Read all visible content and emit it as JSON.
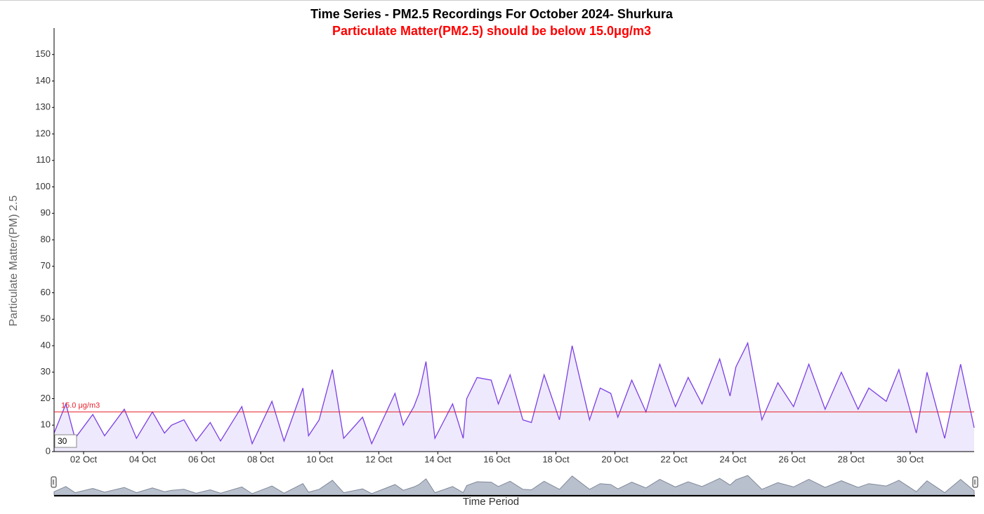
{
  "chart_data": {
    "type": "area",
    "title": "Time Series - PM2.5 Recordings For October 2024- Shurkura",
    "subtitle": "Particulate Matter(PM2.5) should be below 15.0μg/m3",
    "y_label": "Particulate Matter(PM) 2.5",
    "x_label": "Time Period",
    "zoom_label": "30",
    "threshold": {
      "value": 15,
      "label": "15.0 μg/m3",
      "color": "#e8202a"
    },
    "x": [
      1.0,
      1.4,
      1.71,
      2.31,
      2.71,
      3.38,
      3.79,
      4.33,
      4.74,
      4.98,
      5.4,
      5.81,
      6.29,
      6.64,
      7.36,
      7.71,
      8.38,
      8.79,
      9.43,
      9.62,
      9.98,
      10.43,
      10.81,
      11.45,
      11.76,
      12.55,
      12.83,
      13.19,
      13.36,
      13.6,
      13.9,
      14.5,
      14.86,
      14.98,
      15.33,
      15.81,
      16.05,
      16.45,
      16.88,
      17.17,
      17.6,
      18.12,
      18.55,
      19.14,
      19.5,
      19.86,
      20.1,
      20.57,
      21.05,
      21.52,
      22.05,
      22.48,
      22.95,
      23.55,
      23.9,
      24.1,
      24.5,
      24.98,
      25.52,
      26.05,
      26.57,
      27.12,
      27.67,
      28.24,
      28.6,
      29.19,
      29.62,
      30.21,
      30.57,
      31.17,
      31.71,
      32.17
    ],
    "series": [
      {
        "name": "PM2.5",
        "color": "#7b3fe4",
        "fill": "#efe9fd",
        "values": [
          7,
          18,
          5,
          14,
          6,
          16,
          5,
          15,
          7,
          10,
          12,
          4,
          11,
          4,
          17,
          3,
          19,
          4,
          24,
          6,
          12,
          31,
          5,
          13,
          3,
          22,
          10,
          17,
          22,
          34,
          5,
          18,
          5,
          20,
          28,
          27,
          18,
          29,
          12,
          11,
          29,
          12,
          40,
          12,
          24,
          22,
          13,
          27,
          15,
          33,
          17,
          28,
          18,
          35,
          21,
          32,
          41,
          12,
          26,
          17,
          33,
          16,
          30,
          16,
          24,
          19,
          31,
          7,
          30,
          5,
          33,
          9
        ]
      }
    ],
    "xlim": [
      1,
      32.17
    ],
    "xticks": [
      {
        "value": 2,
        "label": "02 Oct"
      },
      {
        "value": 4,
        "label": "04 Oct"
      },
      {
        "value": 6,
        "label": "06 Oct"
      },
      {
        "value": 8,
        "label": "08 Oct"
      },
      {
        "value": 10,
        "label": "10 Oct"
      },
      {
        "value": 12,
        "label": "12 Oct"
      },
      {
        "value": 14,
        "label": "14 Oct"
      },
      {
        "value": 16,
        "label": "16 Oct"
      },
      {
        "value": 18,
        "label": "18 Oct"
      },
      {
        "value": 20,
        "label": "20 Oct"
      },
      {
        "value": 22,
        "label": "22 Oct"
      },
      {
        "value": 24,
        "label": "24 Oct"
      },
      {
        "value": 26,
        "label": "26 Oct"
      },
      {
        "value": 28,
        "label": "28 Oct"
      },
      {
        "value": 30,
        "label": "30 Oct"
      }
    ],
    "ylim": [
      0,
      160
    ],
    "yticks": [
      0,
      10,
      20,
      30,
      40,
      50,
      60,
      70,
      80,
      90,
      100,
      110,
      120,
      130,
      140,
      150
    ]
  }
}
